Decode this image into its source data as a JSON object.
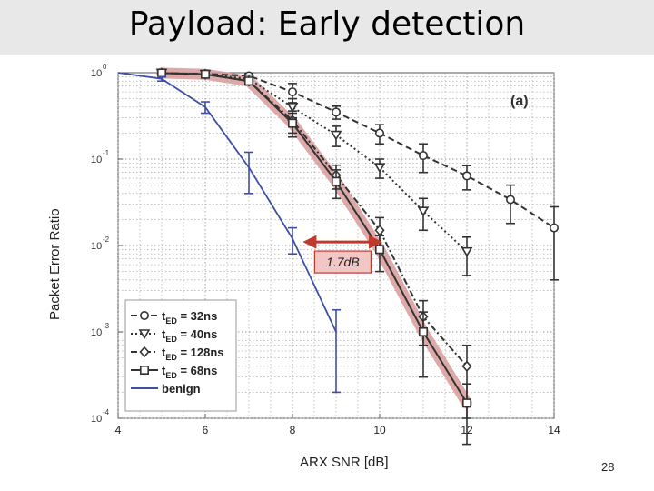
{
  "slide": {
    "title": "Payload: Early detection",
    "page_number": "28"
  },
  "chart_data": {
    "type": "line",
    "title": "",
    "panel_label": "(a)",
    "xlabel": "ARX SNR [dB]",
    "ylabel": "Packet Error Ratio",
    "xlim": [
      4,
      14
    ],
    "ylim": [
      0.0001,
      1
    ],
    "yscale": "log",
    "grid": true,
    "legend_position": "lower-left",
    "x_ticks": [
      4,
      6,
      8,
      10,
      12,
      14
    ],
    "x_tick_labels": [
      "4",
      "6",
      "8",
      "10",
      "12",
      "14"
    ],
    "y_ticks": [
      1,
      0.1,
      0.01,
      0.001,
      0.0001
    ],
    "y_tick_base": [
      "10",
      "10",
      "10",
      "10",
      "10"
    ],
    "y_tick_exp": [
      "0",
      "-1",
      "-2",
      "-3",
      "-4"
    ],
    "series": [
      {
        "name": "t",
        "sub": "ED",
        "suffix": " = 32ns",
        "style": "dashed",
        "marker": "circle",
        "x": [
          5,
          6,
          7,
          8,
          9,
          10,
          11,
          12,
          13,
          14
        ],
        "y": [
          0.99,
          0.97,
          0.92,
          0.6,
          0.35,
          0.2,
          0.11,
          0.064,
          0.034,
          0.016
        ],
        "err": [
          0.05,
          0.05,
          0.05,
          0.15,
          0.06,
          0.05,
          0.04,
          0.02,
          0.016,
          0.012
        ]
      },
      {
        "name": "t",
        "sub": "ED",
        "suffix": " = 40ns",
        "style": "dotted",
        "marker": "triangle-down",
        "x": [
          5,
          6,
          7,
          8,
          9,
          10,
          11,
          12
        ],
        "y": [
          0.99,
          0.96,
          0.85,
          0.4,
          0.19,
          0.08,
          0.025,
          0.0085
        ],
        "err": [
          0.05,
          0.05,
          0.05,
          0.1,
          0.05,
          0.02,
          0.01,
          0.004
        ]
      },
      {
        "name": "t",
        "sub": "ED",
        "suffix": " = 128ns",
        "style": "dashdot",
        "marker": "diamond",
        "x": [
          5,
          6,
          7,
          8,
          9,
          10,
          11,
          12
        ],
        "y": [
          0.99,
          0.96,
          0.8,
          0.28,
          0.065,
          0.015,
          0.0015,
          0.0004
        ],
        "err": [
          0.05,
          0.05,
          0.05,
          0.08,
          0.02,
          0.006,
          0.0008,
          0.0003
        ]
      },
      {
        "name": "t",
        "sub": "ED",
        "suffix": " = 68ns",
        "style": "solid",
        "marker": "square",
        "x": [
          5,
          6,
          7,
          8,
          9,
          10,
          11,
          12
        ],
        "y": [
          0.99,
          0.96,
          0.8,
          0.26,
          0.055,
          0.009,
          0.001,
          0.00015
        ],
        "err": [
          0.05,
          0.05,
          0.05,
          0.08,
          0.02,
          0.004,
          0.0007,
          0.0001
        ]
      },
      {
        "name": "benign",
        "style": "solid",
        "marker": "none",
        "x": [
          4,
          5,
          6,
          7,
          8,
          9
        ],
        "y": [
          1,
          0.85,
          0.4,
          0.08,
          0.012,
          0.001
        ],
        "err": [
          0.0,
          0.05,
          0.06,
          0.04,
          0.004,
          0.0008
        ]
      }
    ],
    "annotation": {
      "text": "1.7dB",
      "x_from": 8.3,
      "x_to": 10.0,
      "y": 0.011
    },
    "colors": {
      "benign": "#3e4ea6",
      "highlight": "#d89a9a",
      "marker_gray": "#333333",
      "grid": "#9a9a9a",
      "arrow": "#c0392b",
      "callout_fill": "#f3c6c6"
    }
  }
}
